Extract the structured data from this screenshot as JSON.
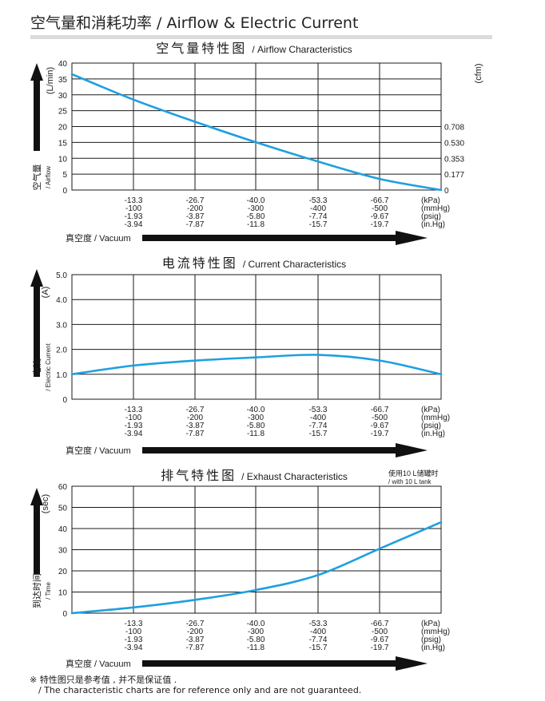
{
  "page": {
    "title": "空气量和消耗功率 / Airflow & Electric Current",
    "footnote_line1": "※ 特性图只是参考值 , 并不是保证值 .",
    "footnote_line2": "/ The characteristic charts are for reference only and are not guaranteed.",
    "line_color": "#1ea0e0",
    "arrow_color": "#111111"
  },
  "chart_data": [
    {
      "type": "line",
      "title_cn": "空气量特性图",
      "title_en": "/ Airflow Characteristics",
      "ylabel_cn": "空气量",
      "ylabel_en": "/ Airflow",
      "yunit": "(L/min)",
      "y2unit": "(cfm)",
      "xlabel": "真空度 / Vacuum",
      "ylim": [
        0,
        40
      ],
      "yticks": [
        "40",
        "35",
        "30",
        "25",
        "20",
        "15",
        "10",
        "5",
        "0"
      ],
      "y2ticks": [
        {
          "value": 20.05,
          "label": "0.708"
        },
        {
          "value": 15.0,
          "label": "0.530"
        },
        {
          "value": 10.0,
          "label": "0.353"
        },
        {
          "value": 5.0,
          "label": "0.177"
        },
        {
          "value": 0,
          "label": "0"
        }
      ],
      "x": [
        0,
        13.3,
        26.7,
        40.0,
        53.3,
        66.7,
        80.0
      ],
      "series": [
        {
          "values": [
            36.5,
            28.5,
            21.5,
            15.0,
            9.0,
            3.5,
            0
          ]
        }
      ]
    },
    {
      "type": "line",
      "title_cn": "电流特性图",
      "title_en": "/ Current Characteristics",
      "ylabel_cn": "电流",
      "ylabel_en": "/ Electric Current",
      "yunit": "(A)",
      "xlabel": "真空度 / Vacuum",
      "ylim": [
        0,
        5.0
      ],
      "yticks": [
        "5.0",
        "4.0",
        "3.0",
        "2.0",
        "1.0",
        "0"
      ],
      "x": [
        0,
        13.3,
        26.7,
        40.0,
        53.3,
        66.7,
        80.0
      ],
      "series": [
        {
          "values": [
            1.0,
            1.35,
            1.55,
            1.68,
            1.78,
            1.55,
            1.0
          ]
        }
      ]
    },
    {
      "type": "line",
      "title_cn": "排气特性图",
      "title_en": "/ Exhaust Characteristics",
      "note_cn": "使用10 L储罐时",
      "note_en": "/ with 10 L tank",
      "ylabel_cn": "到达时间",
      "ylabel_en": "/ Time",
      "yunit": "(sec)",
      "xlabel": "真空度 / Vacuum",
      "ylim": [
        0,
        60
      ],
      "yticks": [
        "60",
        "50",
        "40",
        "30",
        "20",
        "10",
        "0"
      ],
      "x": [
        0,
        13.3,
        26.7,
        40.0,
        53.3,
        66.7,
        80.0
      ],
      "series": [
        {
          "values": [
            0,
            2.7,
            6.3,
            11.0,
            18.0,
            30.5,
            43.0
          ]
        }
      ]
    }
  ],
  "x_axis": {
    "rows": [
      {
        "unit": "(kPa)",
        "values": [
          "-13.3",
          "-26.7",
          "-40.0",
          "-53.3",
          "-66.7"
        ]
      },
      {
        "unit": "(mmHg)",
        "values": [
          "-100",
          "-200",
          "-300",
          "-400",
          "-500"
        ]
      },
      {
        "unit": "(psig)",
        "values": [
          "-1.93",
          "-3.87",
          "-5.80",
          "-7.74",
          "-9.67"
        ]
      },
      {
        "unit": "(in.Hg)",
        "values": [
          "-3.94",
          "-7.87",
          "-11.8",
          "-15.7",
          "-19.7"
        ]
      }
    ]
  }
}
